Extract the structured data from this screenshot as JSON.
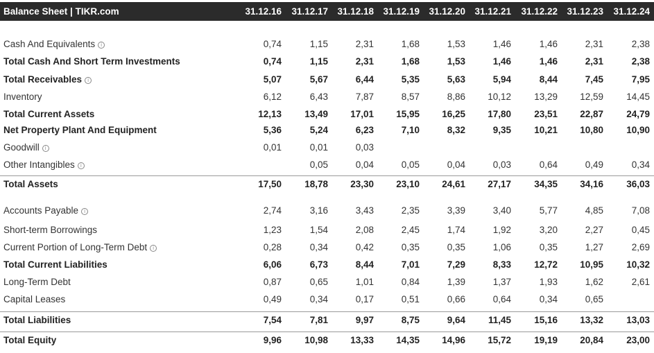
{
  "header": {
    "title": "Balance Sheet | TIKR.com",
    "columns": [
      "31.12.16",
      "31.12.17",
      "31.12.18",
      "31.12.19",
      "31.12.20",
      "31.12.21",
      "31.12.22",
      "31.12.23",
      "31.12.24"
    ]
  },
  "rows": [
    {
      "label": "Cash And Equivalents",
      "bold": false,
      "info": true,
      "values": [
        "0,74",
        "1,15",
        "2,31",
        "1,68",
        "1,53",
        "1,46",
        "1,46",
        "2,31",
        "2,38"
      ]
    },
    {
      "label": "Total Cash And Short Term Investments",
      "bold": true,
      "info": false,
      "values": [
        "0,74",
        "1,15",
        "2,31",
        "1,68",
        "1,53",
        "1,46",
        "1,46",
        "2,31",
        "2,38"
      ]
    },
    {
      "label": "Total Receivables",
      "bold": true,
      "info": true,
      "values": [
        "5,07",
        "5,67",
        "6,44",
        "5,35",
        "5,63",
        "5,94",
        "8,44",
        "7,45",
        "7,95"
      ]
    },
    {
      "label": "Inventory",
      "bold": false,
      "info": false,
      "values": [
        "6,12",
        "6,43",
        "7,87",
        "8,57",
        "8,86",
        "10,12",
        "13,29",
        "12,59",
        "14,45"
      ]
    },
    {
      "label": "Total Current Assets",
      "bold": true,
      "info": false,
      "values": [
        "12,13",
        "13,49",
        "17,01",
        "15,95",
        "16,25",
        "17,80",
        "23,51",
        "22,87",
        "24,79"
      ]
    },
    {
      "label": "Net Property Plant And Equipment",
      "bold": true,
      "info": false,
      "values": [
        "5,36",
        "5,24",
        "6,23",
        "7,10",
        "8,32",
        "9,35",
        "10,21",
        "10,80",
        "10,90"
      ]
    },
    {
      "label": "Goodwill",
      "bold": false,
      "info": true,
      "values": [
        "0,01",
        "0,01",
        "0,03",
        "",
        "",
        "",
        "",
        "",
        ""
      ]
    },
    {
      "label": "Other Intangibles",
      "bold": false,
      "info": true,
      "values": [
        "",
        "0,05",
        "0,04",
        "0,05",
        "0,04",
        "0,03",
        "0,64",
        "0,49",
        "0,34"
      ]
    },
    {
      "label": "Total Assets",
      "bold": true,
      "info": false,
      "values": [
        "17,50",
        "18,78",
        "23,30",
        "23,10",
        "24,61",
        "27,17",
        "34,35",
        "34,16",
        "36,03"
      ]
    },
    {
      "label": "Accounts Payable",
      "bold": false,
      "info": true,
      "values": [
        "2,74",
        "3,16",
        "3,43",
        "2,35",
        "3,39",
        "3,40",
        "5,77",
        "4,85",
        "7,08"
      ]
    },
    {
      "label": "Short-term Borrowings",
      "bold": false,
      "info": false,
      "values": [
        "1,23",
        "1,54",
        "2,08",
        "2,45",
        "1,74",
        "1,92",
        "3,20",
        "2,27",
        "0,45"
      ]
    },
    {
      "label": "Current Portion of Long-Term Debt",
      "bold": false,
      "info": true,
      "values": [
        "0,28",
        "0,34",
        "0,42",
        "0,35",
        "0,35",
        "1,06",
        "0,35",
        "1,27",
        "2,69"
      ]
    },
    {
      "label": "Total Current Liabilities",
      "bold": true,
      "info": false,
      "values": [
        "6,06",
        "6,73",
        "8,44",
        "7,01",
        "7,29",
        "8,33",
        "12,72",
        "10,95",
        "10,32"
      ]
    },
    {
      "label": "Long-Term Debt",
      "bold": false,
      "info": false,
      "values": [
        "0,87",
        "0,65",
        "1,01",
        "0,84",
        "1,39",
        "1,37",
        "1,93",
        "1,62",
        "2,61"
      ]
    },
    {
      "label": "Capital Leases",
      "bold": false,
      "info": false,
      "values": [
        "0,49",
        "0,34",
        "0,17",
        "0,51",
        "0,66",
        "0,64",
        "0,34",
        "0,65",
        ""
      ]
    },
    {
      "label": "Total Liabilities",
      "bold": true,
      "info": false,
      "values": [
        "7,54",
        "7,81",
        "9,97",
        "8,75",
        "9,64",
        "11,45",
        "15,16",
        "13,32",
        "13,03"
      ]
    },
    {
      "label": "Total Equity",
      "bold": true,
      "info": false,
      "values": [
        "9,96",
        "10,98",
        "13,33",
        "14,35",
        "14,96",
        "15,72",
        "19,19",
        "20,84",
        "23,00"
      ]
    }
  ]
}
